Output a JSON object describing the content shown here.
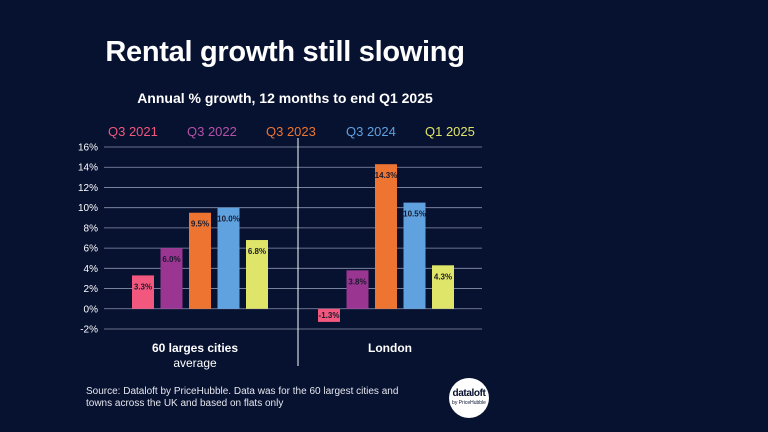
{
  "chart_data": {
    "type": "bar",
    "title": "Rental growth still slowing",
    "subtitle": "Annual % growth, 12 months to end Q1 2025",
    "groups": [
      {
        "label": "60 larges cities",
        "sublabel": "average"
      },
      {
        "label": "London",
        "sublabel": ""
      }
    ],
    "series": [
      {
        "name": "Q3 2021",
        "color": "#f2577d",
        "values": [
          3.3,
          -1.3
        ],
        "labels": [
          "3.3%",
          "-1.3%"
        ]
      },
      {
        "name": "Q3 2022",
        "color": "#9a3591",
        "values": [
          6.0,
          3.8
        ],
        "labels": [
          "6.0%",
          "3.8%"
        ]
      },
      {
        "name": "Q3 2023",
        "color": "#ee7531",
        "values": [
          9.5,
          14.3
        ],
        "labels": [
          "9.5%",
          "14.3%"
        ]
      },
      {
        "name": "Q3 2024",
        "color": "#5fa2df",
        "values": [
          10.0,
          10.5
        ],
        "labels": [
          "10.0%",
          "10.5%"
        ]
      },
      {
        "name": "Q1 2025",
        "color": "#dfe568",
        "values": [
          6.8,
          4.3
        ],
        "labels": [
          "6.8%",
          "4.3%"
        ]
      }
    ],
    "y_ticks": [
      "16%",
      "14%",
      "12%",
      "10%",
      "8%",
      "6%",
      "4%",
      "2%",
      "0%",
      "-2%"
    ],
    "y_tick_values": [
      16,
      14,
      12,
      10,
      8,
      6,
      4,
      2,
      0,
      -2
    ],
    "ylim": [
      -2,
      16
    ],
    "grid": true
  },
  "footnote": "Source: Dataloft by PriceHubble. Data was for the 60 largest cities and towns across the UK and based on flats only",
  "logo": {
    "main": "dataloft",
    "sub": "by PriceHubble"
  }
}
